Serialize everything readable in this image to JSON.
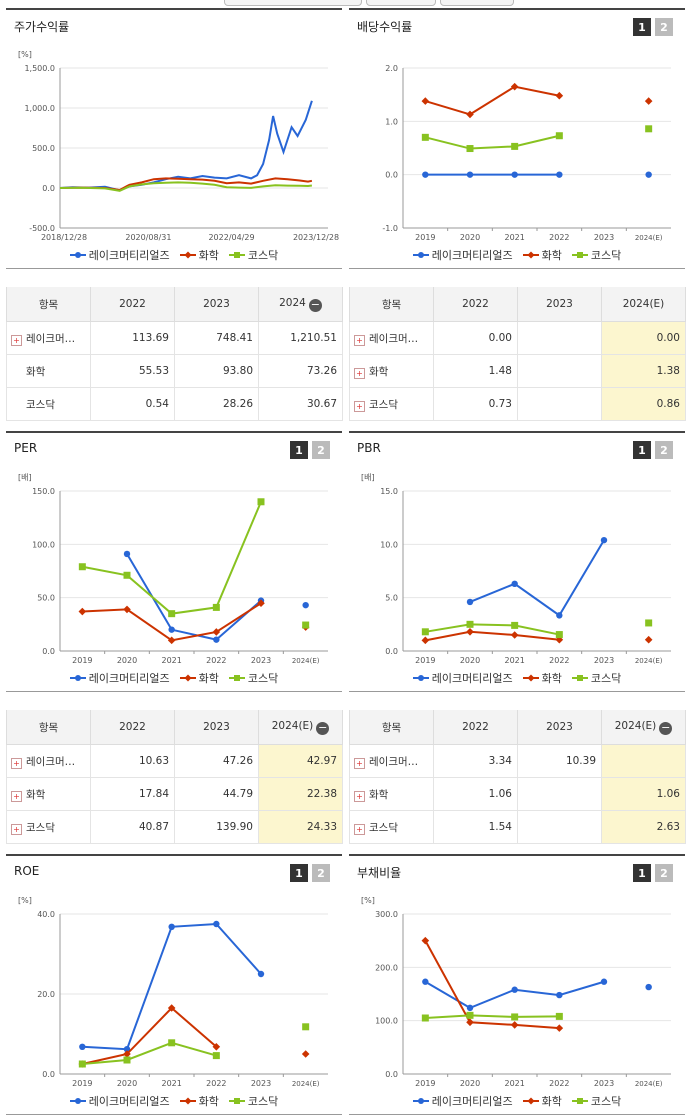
{
  "legend": {
    "items": [
      {
        "label": "레이크머티리얼즈",
        "color": "#2866d6",
        "marker": "circle"
      },
      {
        "label": "화학",
        "color": "#cc3300",
        "marker": "diamond"
      },
      {
        "label": "코스닥",
        "color": "#88c220",
        "marker": "square"
      }
    ]
  },
  "tabs": [
    "1",
    "2"
  ],
  "panels": {
    "stock": {
      "title": "주가수익률"
    },
    "div": {
      "title": "배당수익률"
    },
    "per": {
      "title": "PER"
    },
    "pbr": {
      "title": "PBR"
    },
    "roe": {
      "title": "ROE"
    },
    "debt": {
      "title": "부채비율"
    }
  },
  "chart_data": [
    {
      "id": "stock",
      "type": "line",
      "unit": "[%]",
      "ylim": [
        -500,
        1500
      ],
      "yticks": [
        "1,500.0",
        "1,000.0",
        "500.0",
        "0.0",
        "-500.0"
      ],
      "x_labels": [
        "2018/12/28",
        "2020/08/31",
        "2022/04/29",
        "2023/12/28"
      ],
      "x_range": [
        "2018-12-28",
        "2024-06-30"
      ],
      "series": [
        {
          "name": "레이크머티리얼즈",
          "color": "#2866d6",
          "points": [
            [
              "2018-12-28",
              0
            ],
            [
              "2019-04-01",
              10
            ],
            [
              "2019-08-01",
              5
            ],
            [
              "2019-12-01",
              15
            ],
            [
              "2020-03-20",
              -30
            ],
            [
              "2020-06-01",
              20
            ],
            [
              "2020-09-01",
              40
            ],
            [
              "2020-12-01",
              70
            ],
            [
              "2021-03-01",
              110
            ],
            [
              "2021-06-01",
              140
            ],
            [
              "2021-09-01",
              120
            ],
            [
              "2021-12-01",
              150
            ],
            [
              "2022-03-01",
              130
            ],
            [
              "2022-06-01",
              120
            ],
            [
              "2022-09-01",
              160
            ],
            [
              "2022-12-01",
              120
            ],
            [
              "2023-01-15",
              160
            ],
            [
              "2023-03-01",
              300
            ],
            [
              "2023-04-15",
              600
            ],
            [
              "2023-05-15",
              900
            ],
            [
              "2023-06-15",
              680
            ],
            [
              "2023-08-01",
              450
            ],
            [
              "2023-10-01",
              760
            ],
            [
              "2023-11-15",
              650
            ],
            [
              "2024-01-15",
              850
            ],
            [
              "2024-03-01",
              1090
            ]
          ]
        },
        {
          "name": "화학",
          "color": "#cc3300",
          "points": [
            [
              "2018-12-28",
              0
            ],
            [
              "2019-06-01",
              5
            ],
            [
              "2019-12-01",
              0
            ],
            [
              "2020-03-20",
              -25
            ],
            [
              "2020-06-01",
              40
            ],
            [
              "2020-09-01",
              70
            ],
            [
              "2020-12-01",
              110
            ],
            [
              "2021-03-01",
              120
            ],
            [
              "2021-06-01",
              115
            ],
            [
              "2021-09-01",
              110
            ],
            [
              "2021-12-01",
              105
            ],
            [
              "2022-03-01",
              90
            ],
            [
              "2022-06-01",
              60
            ],
            [
              "2022-09-01",
              70
            ],
            [
              "2022-12-01",
              55
            ],
            [
              "2023-03-01",
              90
            ],
            [
              "2023-06-01",
              120
            ],
            [
              "2023-09-01",
              110
            ],
            [
              "2023-12-01",
              94
            ],
            [
              "2024-02-01",
              80
            ],
            [
              "2024-03-01",
              90
            ]
          ]
        },
        {
          "name": "코스닥",
          "color": "#88c220",
          "points": [
            [
              "2018-12-28",
              0
            ],
            [
              "2019-06-01",
              2
            ],
            [
              "2019-12-01",
              -5
            ],
            [
              "2020-03-20",
              -35
            ],
            [
              "2020-06-01",
              20
            ],
            [
              "2020-09-01",
              45
            ],
            [
              "2020-12-01",
              60
            ],
            [
              "2021-03-01",
              65
            ],
            [
              "2021-06-01",
              70
            ],
            [
              "2021-09-01",
              65
            ],
            [
              "2021-12-01",
              55
            ],
            [
              "2022-03-01",
              40
            ],
            [
              "2022-06-01",
              10
            ],
            [
              "2022-09-01",
              5
            ],
            [
              "2022-12-01",
              1
            ],
            [
              "2023-03-01",
              20
            ],
            [
              "2023-06-01",
              35
            ],
            [
              "2023-09-01",
              30
            ],
            [
              "2023-12-01",
              28
            ],
            [
              "2024-02-01",
              25
            ],
            [
              "2024-03-01",
              31
            ]
          ]
        }
      ]
    },
    {
      "id": "div",
      "type": "line",
      "unit": "",
      "ylim": [
        -1,
        2
      ],
      "yticks": [
        "2.0",
        "1.0",
        "0.0",
        "-1.0"
      ],
      "categories": [
        "2019",
        "2020",
        "2021",
        "2022",
        "2023",
        "2024(E)"
      ],
      "series": [
        {
          "name": "레이크머티리얼즈",
          "color": "#2866d6",
          "marker": "circle",
          "values": [
            0,
            0,
            0,
            0,
            null,
            0
          ]
        },
        {
          "name": "화학",
          "color": "#cc3300",
          "marker": "diamond",
          "values": [
            1.38,
            1.13,
            1.65,
            1.48,
            null,
            1.38
          ]
        },
        {
          "name": "코스닥",
          "color": "#88c220",
          "marker": "square",
          "values": [
            0.7,
            0.49,
            0.53,
            0.73,
            null,
            0.86
          ]
        }
      ]
    },
    {
      "id": "per",
      "type": "line",
      "unit": "[배]",
      "ylim": [
        0,
        150
      ],
      "yticks": [
        "150.0",
        "100.0",
        "50.0",
        "0.0"
      ],
      "categories": [
        "2019",
        "2020",
        "2021",
        "2022",
        "2023",
        "2024(E)"
      ],
      "series": [
        {
          "name": "레이크머티리얼즈",
          "color": "#2866d6",
          "marker": "circle",
          "values": [
            null,
            91,
            20,
            10.63,
            47.26,
            42.97
          ]
        },
        {
          "name": "화학",
          "color": "#cc3300",
          "marker": "diamond",
          "values": [
            37,
            39,
            10,
            17.84,
            44.79,
            22.38
          ]
        },
        {
          "name": "코스닥",
          "color": "#88c220",
          "marker": "square",
          "values": [
            79,
            71,
            35,
            40.87,
            139.9,
            24.33
          ]
        }
      ]
    },
    {
      "id": "pbr",
      "type": "line",
      "unit": "[배]",
      "ylim": [
        0,
        15
      ],
      "yticks": [
        "15.0",
        "10.0",
        "5.0",
        "0.0"
      ],
      "categories": [
        "2019",
        "2020",
        "2021",
        "2022",
        "2023",
        "2024(E)"
      ],
      "series": [
        {
          "name": "레이크머티리얼즈",
          "color": "#2866d6",
          "marker": "circle",
          "values": [
            null,
            4.6,
            6.3,
            3.34,
            10.39,
            null
          ]
        },
        {
          "name": "화학",
          "color": "#cc3300",
          "marker": "diamond",
          "values": [
            1.0,
            1.8,
            1.5,
            1.06,
            null,
            1.06
          ]
        },
        {
          "name": "코스닥",
          "color": "#88c220",
          "marker": "square",
          "values": [
            1.8,
            2.5,
            2.4,
            1.54,
            null,
            2.63
          ]
        }
      ]
    },
    {
      "id": "roe",
      "type": "line",
      "unit": "[%]",
      "ylim": [
        0,
        40
      ],
      "yticks": [
        "40.0",
        "20.0",
        "0.0"
      ],
      "categories": [
        "2019",
        "2020",
        "2021",
        "2022",
        "2023",
        "2024(E)"
      ],
      "series": [
        {
          "name": "레이크머티리얼즈",
          "color": "#2866d6",
          "marker": "circle",
          "values": [
            6.8,
            6.2,
            36.8,
            37.5,
            25,
            null
          ]
        },
        {
          "name": "화학",
          "color": "#cc3300",
          "marker": "diamond",
          "values": [
            2.5,
            5,
            16.5,
            6.8,
            null,
            5
          ]
        },
        {
          "name": "코스닥",
          "color": "#88c220",
          "marker": "square",
          "values": [
            2.5,
            3.5,
            7.8,
            4.6,
            null,
            11.8
          ]
        }
      ]
    },
    {
      "id": "debt",
      "type": "line",
      "unit": "[%]",
      "ylim": [
        0,
        300
      ],
      "yticks": [
        "300.0",
        "200.0",
        "100.0",
        "0.0"
      ],
      "categories": [
        "2019",
        "2020",
        "2021",
        "2022",
        "2023",
        "2024(E)"
      ],
      "series": [
        {
          "name": "레이크머티리얼즈",
          "color": "#2866d6",
          "marker": "circle",
          "values": [
            173,
            124,
            158,
            148,
            173,
            163
          ]
        },
        {
          "name": "화학",
          "color": "#cc3300",
          "marker": "diamond",
          "values": [
            250,
            97,
            92,
            86,
            null,
            null
          ]
        },
        {
          "name": "코스닥",
          "color": "#88c220",
          "marker": "square",
          "values": [
            105,
            110,
            107,
            108,
            null,
            null
          ]
        }
      ]
    }
  ],
  "tables": {
    "t1": {
      "headers": [
        "항목",
        "2022",
        "2023",
        "2024"
      ],
      "has_minus": true,
      "rows": [
        {
          "label": "레이크머…",
          "plus": true,
          "values": [
            "113.69",
            "748.41",
            "1,210.51"
          ]
        },
        {
          "label": "화학",
          "plus": false,
          "values": [
            "55.53",
            "93.80",
            "73.26"
          ]
        },
        {
          "label": "코스닥",
          "plus": false,
          "values": [
            "0.54",
            "28.26",
            "30.67"
          ]
        }
      ]
    },
    "t2": {
      "headers": [
        "항목",
        "2022",
        "2023",
        "2024(E)"
      ],
      "has_minus": false,
      "rows": [
        {
          "label": "레이크머…",
          "plus": true,
          "values": [
            "0.00",
            "",
            "0.00"
          ]
        },
        {
          "label": "화학",
          "plus": true,
          "values": [
            "1.48",
            "",
            "1.38"
          ]
        },
        {
          "label": "코스닥",
          "plus": true,
          "values": [
            "0.73",
            "",
            "0.86"
          ]
        }
      ]
    },
    "t3": {
      "headers": [
        "항목",
        "2022",
        "2023",
        "2024(E)"
      ],
      "has_minus": true,
      "rows": [
        {
          "label": "레이크머…",
          "plus": true,
          "values": [
            "10.63",
            "47.26",
            "42.97"
          ]
        },
        {
          "label": "화학",
          "plus": true,
          "values": [
            "17.84",
            "44.79",
            "22.38"
          ]
        },
        {
          "label": "코스닥",
          "plus": true,
          "values": [
            "40.87",
            "139.90",
            "24.33"
          ]
        }
      ]
    },
    "t4": {
      "headers": [
        "항목",
        "2022",
        "2023",
        "2024(E)"
      ],
      "has_minus": true,
      "rows": [
        {
          "label": "레이크머…",
          "plus": true,
          "values": [
            "3.34",
            "10.39",
            ""
          ]
        },
        {
          "label": "화학",
          "plus": true,
          "values": [
            "1.06",
            "",
            "1.06"
          ]
        },
        {
          "label": "코스닥",
          "plus": true,
          "values": [
            "1.54",
            "",
            "2.63"
          ]
        }
      ]
    }
  }
}
